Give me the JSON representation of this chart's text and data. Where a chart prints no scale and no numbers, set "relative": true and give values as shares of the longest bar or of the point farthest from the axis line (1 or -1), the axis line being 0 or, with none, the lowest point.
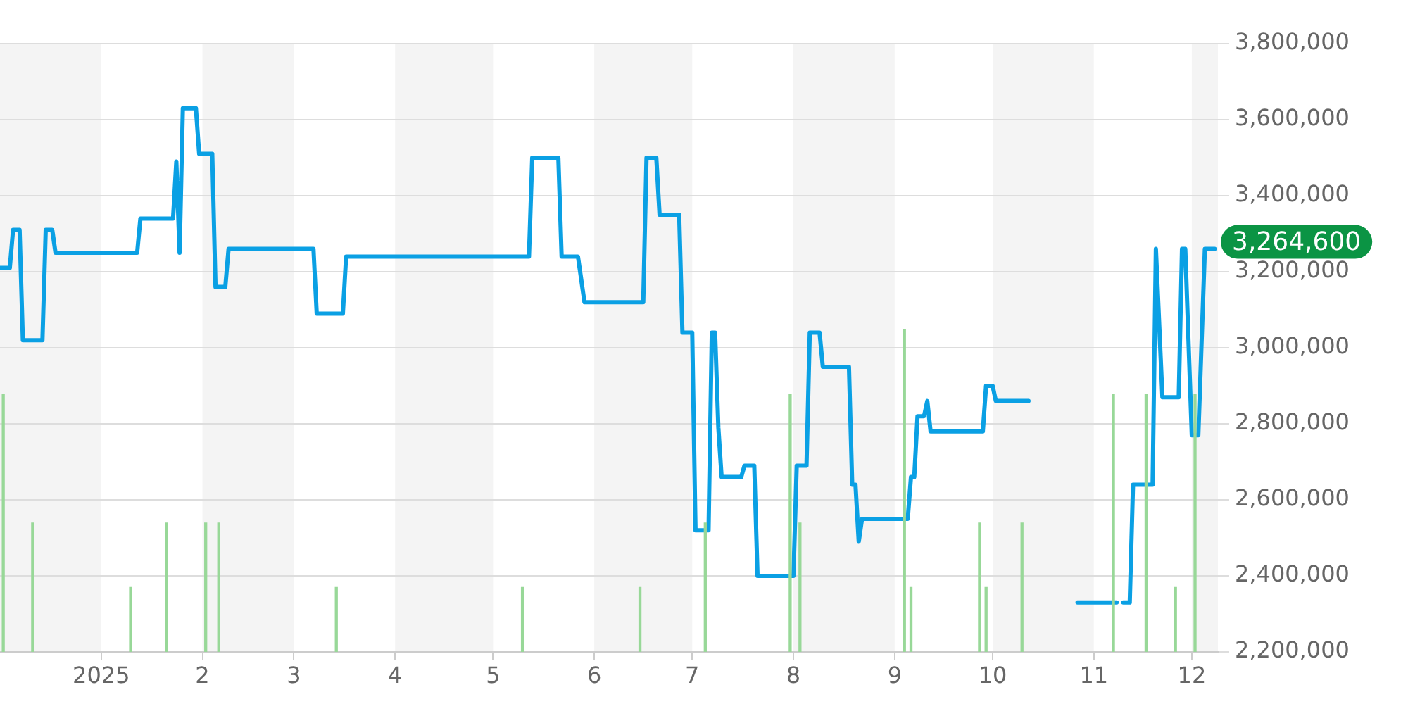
{
  "chart_data": [
    {
      "type": "line",
      "color": "#0aa0e4",
      "xlim": [
        "2024-12-01",
        "2025-12-09"
      ],
      "ylim": [
        2200000,
        3800000
      ],
      "xticks": [
        {
          "value": "2025-01-01",
          "label": "2025"
        },
        {
          "value": "2025-02-01",
          "label": "2"
        },
        {
          "value": "2025-03-01",
          "label": "3"
        },
        {
          "value": "2025-04-01",
          "label": "4"
        },
        {
          "value": "2025-05-01",
          "label": "5"
        },
        {
          "value": "2025-06-01",
          "label": "6"
        },
        {
          "value": "2025-07-01",
          "label": "7"
        },
        {
          "value": "2025-08-01",
          "label": "8"
        },
        {
          "value": "2025-09-01",
          "label": "9"
        },
        {
          "value": "2025-10-01",
          "label": "10"
        },
        {
          "value": "2025-11-01",
          "label": "11"
        },
        {
          "value": "2025-12-01",
          "label": "12"
        }
      ],
      "yticks": [
        {
          "value": 2200000,
          "label": "2,200,000"
        },
        {
          "value": 2400000,
          "label": "2,400,000"
        },
        {
          "value": 2600000,
          "label": "2,600,000"
        },
        {
          "value": 2800000,
          "label": "2,800,000"
        },
        {
          "value": 3000000,
          "label": "3,000,000"
        },
        {
          "value": 3200000,
          "label": "3,200,000"
        },
        {
          "value": 3400000,
          "label": "3,400,000"
        },
        {
          "value": 3600000,
          "label": "3,600,000"
        },
        {
          "value": 3800000,
          "label": "3,800,000"
        }
      ],
      "grid": "y",
      "legend": false,
      "marker": "none",
      "line_style": "solid",
      "x": [
        "2024-12-01",
        "2024-12-04",
        "2024-12-05",
        "2024-12-07",
        "2024-12-08",
        "2024-12-14",
        "2024-12-15",
        "2024-12-17",
        "2024-12-18",
        "2025-01-12",
        "2025-01-13",
        "2025-01-23",
        "2025-01-24",
        "2025-01-25",
        "2025-01-26",
        "2025-01-30",
        "2025-01-31",
        "2025-02-04",
        "2025-02-05",
        "2025-02-08",
        "2025-02-09",
        "2025-03-07",
        "2025-03-08",
        "2025-03-16",
        "2025-03-17",
        "2025-05-12",
        "2025-05-13",
        "2025-05-21",
        "2025-05-22",
        "2025-05-27",
        "2025-05-29",
        "2025-06-16",
        "2025-06-17",
        "2025-06-20",
        "2025-06-21",
        "2025-06-27",
        "2025-06-28",
        "2025-07-01",
        "2025-07-02",
        "2025-07-06",
        "2025-07-07",
        "2025-07-08",
        "2025-07-09",
        "2025-07-10",
        "2025-07-16",
        "2025-07-17",
        "2025-07-20",
        "2025-07-21",
        "2025-08-01",
        "2025-08-02",
        "2025-08-05",
        "2025-08-06",
        "2025-08-09",
        "2025-08-10",
        "2025-08-18",
        "2025-08-19",
        "2025-08-20",
        "2025-08-21",
        "2025-08-22",
        "2025-09-05",
        "2025-09-06",
        "2025-09-07",
        "2025-09-08",
        "2025-09-10",
        "2025-09-11",
        "2025-09-12",
        "2025-09-28",
        "2025-09-29",
        "2025-10-01",
        "2025-10-02",
        "2025-10-12",
        "2025-10-19",
        "2025-10-27",
        "2025-11-08",
        "2025-11-09",
        "2025-11-10",
        "2025-11-12",
        "2025-11-13",
        "2025-11-19",
        "2025-11-20",
        "2025-11-22",
        "2025-11-27",
        "2025-11-28",
        "2025-11-29",
        "2025-12-01",
        "2025-12-03",
        "2025-12-05",
        "2025-12-08"
      ],
      "values": [
        3210000,
        3210000,
        3310000,
        3310000,
        3020000,
        3020000,
        3310000,
        3310000,
        3250000,
        3250000,
        3340000,
        3340000,
        3490000,
        3250000,
        3630000,
        3630000,
        3510000,
        3510000,
        3160000,
        3160000,
        3260000,
        3260000,
        3090000,
        3090000,
        3240000,
        3240000,
        3500000,
        3500000,
        3240000,
        3240000,
        3120000,
        3120000,
        3500000,
        3500000,
        3350000,
        3350000,
        3040000,
        3040000,
        2520000,
        2520000,
        3040000,
        3040000,
        2790000,
        2660000,
        2660000,
        2690000,
        2690000,
        2400000,
        2400000,
        2690000,
        2690000,
        3040000,
        3040000,
        2950000,
        2950000,
        2640000,
        2640000,
        2490000,
        2550000,
        2550000,
        2660000,
        2660000,
        2820000,
        2820000,
        2860000,
        2780000,
        2780000,
        2900000,
        2900000,
        2860000,
        2860000,
        null,
        2330000,
        2330000,
        null,
        2330000,
        2330000,
        2640000,
        2640000,
        3260000,
        2870000,
        2870000,
        3260000,
        3260000,
        2770000,
        2770000,
        3260000,
        3260000
      ],
      "bands": [
        {
          "axis": "x",
          "from": "2024-12-01",
          "to": "2025-01-01",
          "color": "#f4f4f4"
        },
        {
          "axis": "x",
          "from": "2025-02-01",
          "to": "2025-03-01",
          "color": "#f4f4f4"
        },
        {
          "axis": "x",
          "from": "2025-04-01",
          "to": "2025-05-01",
          "color": "#f4f4f4"
        },
        {
          "axis": "x",
          "from": "2025-06-01",
          "to": "2025-07-01",
          "color": "#f4f4f4"
        },
        {
          "axis": "x",
          "from": "2025-08-01",
          "to": "2025-09-01",
          "color": "#f4f4f4"
        },
        {
          "axis": "x",
          "from": "2025-10-01",
          "to": "2025-11-01",
          "color": "#f4f4f4"
        },
        {
          "axis": "x",
          "from": "2025-12-01",
          "to": "2025-12-09",
          "color": "#f4f4f4"
        }
      ],
      "annotations": [
        "3,264,600"
      ]
    },
    {
      "type": "bar",
      "relative": true,
      "color": "#98d898",
      "xlim": [
        "2024-12-01",
        "2025-12-09"
      ],
      "x": [
        "2024-12-02",
        "2024-12-11",
        "2025-01-10",
        "2025-01-21",
        "2025-02-02",
        "2025-02-06",
        "2025-03-14",
        "2025-05-10",
        "2025-06-15",
        "2025-07-05",
        "2025-07-31",
        "2025-08-03",
        "2025-09-04",
        "2025-09-06",
        "2025-09-27",
        "2025-09-29",
        "2025-10-10",
        "2025-11-07",
        "2025-11-17",
        "2025-11-26",
        "2025-12-02"
      ],
      "values": [
        0.8,
        0.4,
        0.2,
        0.4,
        0.4,
        0.4,
        0.2,
        0.2,
        0.2,
        0.4,
        0.8,
        0.4,
        1,
        0.2,
        0.4,
        0.2,
        0.4,
        0.8,
        0.8,
        0.2,
        0.8
      ]
    }
  ]
}
